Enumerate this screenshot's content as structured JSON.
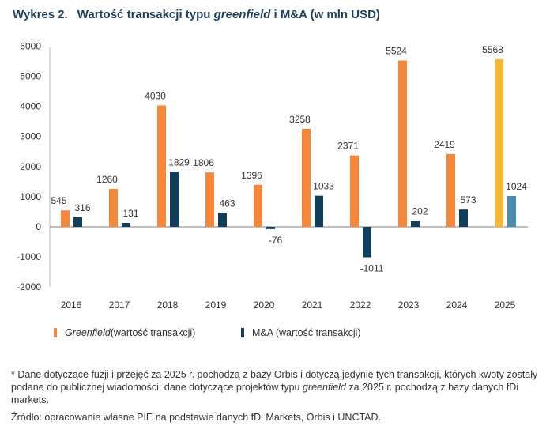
{
  "title": {
    "prefix": "Wykres 2.",
    "part1": "Wartość transakcji typu ",
    "italic": "greenfield",
    "part2": " i M&A (w mln USD)"
  },
  "chart_data": {
    "type": "bar",
    "categories": [
      "2016",
      "2017",
      "2018",
      "2019",
      "2020",
      "2021",
      "2022",
      "2023",
      "2024",
      "2025"
    ],
    "series": [
      {
        "name": "Greenfield (wartość transakcji)",
        "values": [
          545,
          1260,
          4030,
          1806,
          1396,
          3258,
          2371,
          5524,
          2419,
          5568
        ],
        "color": "#f5873a",
        "highlight_color": "#f3b935"
      },
      {
        "name": "M&A (wartość transakcji)",
        "values": [
          316,
          131,
          1829,
          463,
          -76,
          1033,
          -1011,
          202,
          573,
          1024
        ],
        "color": "#103f5e",
        "highlight_color": "#4a8db0"
      }
    ],
    "highlighted_category": "2025",
    "yticks": [
      -2000,
      -1000,
      0,
      1000,
      2000,
      3000,
      4000,
      5000,
      6000
    ],
    "ylim": [
      -2000,
      6000
    ],
    "grid": false,
    "legend_position": "bottom"
  },
  "legend": {
    "greenfield_italic": "Greenfield",
    "greenfield_rest": " (wartość transakcji)",
    "ma": "M&A (wartość transakcji)"
  },
  "notes": {
    "footnote_a": "* Dane dotyczące fuzji i przejęć za 2025 r. pochodzą z bazy Orbis i dotyczą jedynie tych transakcji, których kwoty zostały podane do publicznej wiadomości; dane dotyczące projektów typu ",
    "footnote_italic": "greenfield",
    "footnote_b": " za 2025 r. pochodzą z bazy danych fDi markets.",
    "source": "Źródło: opracowanie własne PIE na podstawie danych fDi Markets, Orbis i UNCTAD."
  }
}
